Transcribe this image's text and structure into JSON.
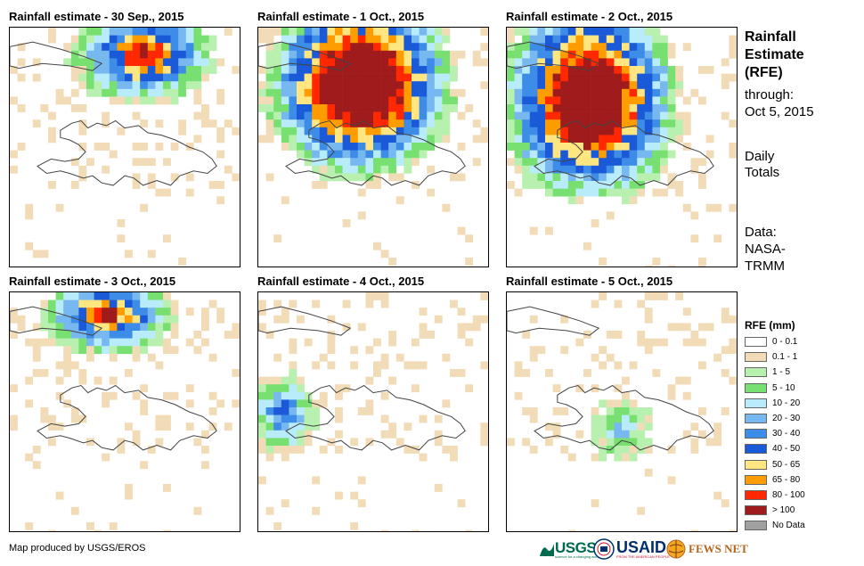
{
  "panels": [
    {
      "title": "Rainfall estimate - 30 Sep., 2015",
      "seed": 11,
      "storm": [
        0.42,
        0.02,
        0.33,
        0.18
      ],
      "intensity": 0.85
    },
    {
      "title": "Rainfall estimate - 1 Oct., 2015",
      "seed": 23,
      "storm": [
        0.22,
        0.02,
        0.45,
        0.42
      ],
      "intensity": 1.2
    },
    {
      "title": "Rainfall estimate - 2 Oct., 2015",
      "seed": 37,
      "storm": [
        0.15,
        0.05,
        0.42,
        0.48
      ],
      "intensity": 1.15
    },
    {
      "title": "Rainfall estimate - 3 Oct., 2015",
      "seed": 41,
      "storm": [
        0.28,
        0.02,
        0.3,
        0.14
      ],
      "intensity": 0.8
    },
    {
      "title": "Rainfall estimate - 4 Oct., 2015",
      "seed": 53,
      "storm": [
        0.05,
        0.42,
        0.12,
        0.15
      ],
      "intensity": 0.55
    },
    {
      "title": "Rainfall estimate - 5 Oct., 2015",
      "seed": 67,
      "storm": [
        0.45,
        0.5,
        0.1,
        0.12
      ],
      "intensity": 0.35
    }
  ],
  "side": {
    "title_line1": "Rainfall",
    "title_line2": "Estimate",
    "title_line3": "(RFE)",
    "through": "through:",
    "through_date": "Oct 5, 2015",
    "daily": "Daily",
    "totals": "Totals",
    "data_label": "Data:",
    "data_src1": "NASA-",
    "data_src2": "TRMM"
  },
  "legend": {
    "title": "RFE (mm)",
    "classes": [
      {
        "label": "0 - 0.1",
        "color": "#ffffff"
      },
      {
        "label": "0.1 - 1",
        "color": "#f2dcb8"
      },
      {
        "label": "1 - 5",
        "color": "#b8f0b0"
      },
      {
        "label": "5 - 10",
        "color": "#78e070"
      },
      {
        "label": "10 - 20",
        "color": "#b8ecfa"
      },
      {
        "label": "20 - 30",
        "color": "#78b8f0"
      },
      {
        "label": "30 - 40",
        "color": "#3c8ce8"
      },
      {
        "label": "40 - 50",
        "color": "#1a5ad8"
      },
      {
        "label": "50 - 65",
        "color": "#ffe680"
      },
      {
        "label": "65 - 80",
        "color": "#ff9c00"
      },
      {
        "label": "80 - 100",
        "color": "#ff2800"
      },
      {
        "label": "> 100",
        "color": "#a01c1c"
      },
      {
        "label": "No Data",
        "color": "#a0a0a0"
      }
    ]
  },
  "footer": "Map produced by USGS/EROS",
  "logos": {
    "usgs": "USGS",
    "usgs_tag": "science for a changing world",
    "usaid": "USAID",
    "usaid_tag": "FROM THE AMERICAN PEOPLE",
    "fews": "FEWS NET"
  }
}
